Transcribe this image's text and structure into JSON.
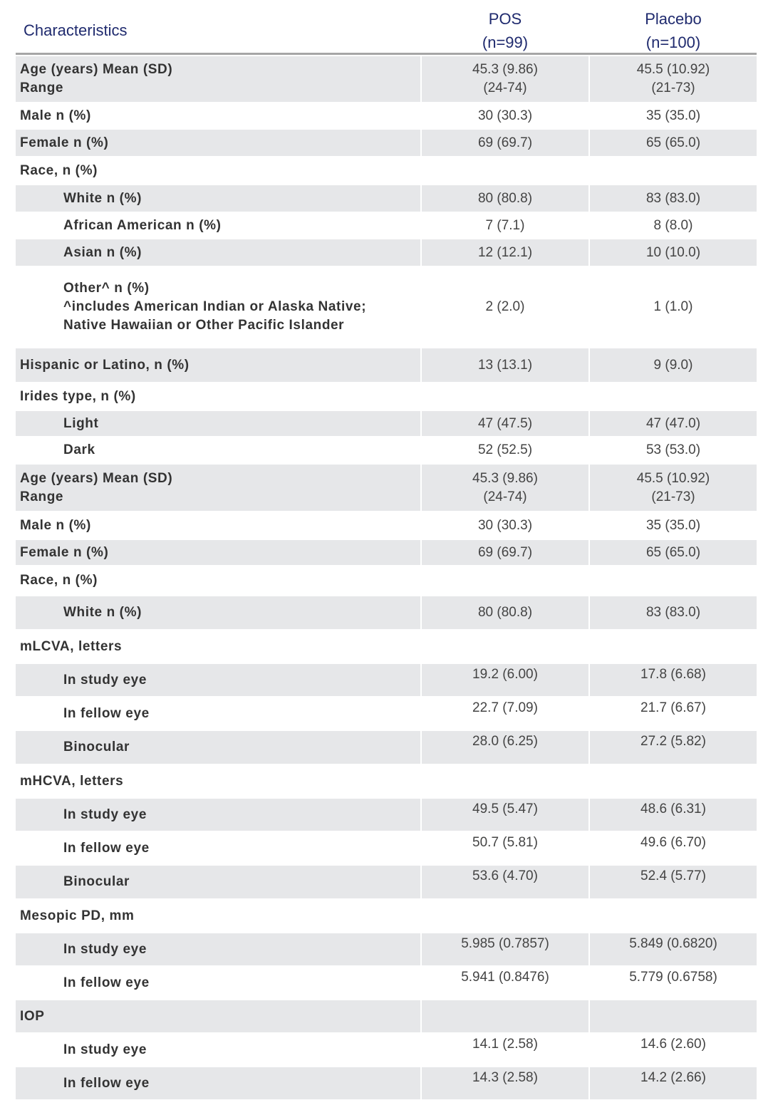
{
  "header": {
    "characteristics": "Characteristics",
    "pos": "POS\n(n=99)",
    "placebo": "Placebo\n(n=100)"
  },
  "colors": {
    "header_text": "#1f2a6e",
    "row_shade": "#e6e7e9",
    "rule": "#a6a6a6"
  },
  "rows": [
    {
      "label": "Age (years) Mean (SD)\nRange",
      "pos": "45.3 (9.86)\n(24-74)",
      "placebo": "45.5 (10.92)\n(21-73)",
      "shaded": true,
      "indent": false
    },
    {
      "label": "Male n (%)",
      "pos": "30 (30.3)",
      "placebo": "35 (35.0)",
      "shaded": false,
      "indent": false
    },
    {
      "label": "Female n (%)",
      "pos": "69 (69.7)",
      "placebo": "65 (65.0)",
      "shaded": true,
      "indent": false
    },
    {
      "label": "Race, n (%)",
      "pos": "",
      "placebo": "",
      "shaded": false,
      "indent": false
    },
    {
      "label": "White n (%)",
      "pos": "80 (80.8)",
      "placebo": "83 (83.0)",
      "shaded": true,
      "indent": true
    },
    {
      "label": "African American n (%)",
      "pos": "7 (7.1)",
      "placebo": "8 (8.0)",
      "shaded": false,
      "indent": true
    },
    {
      "label": "Asian n (%)",
      "pos": "12 (12.1)",
      "placebo": "10 (10.0)",
      "shaded": true,
      "indent": true
    },
    {
      "label": "Other^ n (%)\n^includes American Indian or Alaska Native;\nNative Hawaiian or Other Pacific Islander",
      "pos": "2 (2.0)",
      "placebo": "1 (1.0)",
      "shaded": false,
      "indent": true
    },
    {
      "label": "Hispanic or Latino, n (%)",
      "pos": "13 (13.1)",
      "placebo": "9 (9.0)",
      "shaded": true,
      "indent": false
    },
    {
      "label": "Irides type, n (%)",
      "pos": "",
      "placebo": "",
      "shaded": false,
      "indent": false
    },
    {
      "label": "Light",
      "pos": "47 (47.5)",
      "placebo": "47 (47.0)",
      "shaded": true,
      "indent": true
    },
    {
      "label": "Dark",
      "pos": "52 (52.5)",
      "placebo": "53 (53.0)",
      "shaded": false,
      "indent": true
    },
    {
      "label": "Age (years) Mean (SD)\nRange",
      "pos": "45.3 (9.86)\n(24-74)",
      "placebo": "45.5 (10.92)\n(21-73)",
      "shaded": true,
      "indent": false
    },
    {
      "label": "Male n (%)",
      "pos": "30 (30.3)",
      "placebo": "35 (35.0)",
      "shaded": false,
      "indent": false
    },
    {
      "label": "Female n (%)",
      "pos": "69 (69.7)",
      "placebo": "65 (65.0)",
      "shaded": true,
      "indent": false
    },
    {
      "label": "Race, n (%)",
      "pos": "",
      "placebo": "",
      "shaded": false,
      "indent": false
    },
    {
      "label": "White n (%)",
      "pos": "80 (80.8)",
      "placebo": "83 (83.0)",
      "shaded": true,
      "indent": true
    },
    {
      "label": "mLCVA, letters",
      "pos": "",
      "placebo": "",
      "shaded": false,
      "indent": false
    },
    {
      "label": "In study eye",
      "pos": "19.2 (6.00)",
      "placebo": "17.8 (6.68)",
      "shaded": true,
      "indent": true
    },
    {
      "label": "In fellow eye",
      "pos": "22.7 (7.09)",
      "placebo": "21.7 (6.67)",
      "shaded": false,
      "indent": true
    },
    {
      "label": "Binocular",
      "pos": "28.0 (6.25)",
      "placebo": "27.2 (5.82)",
      "shaded": true,
      "indent": true
    },
    {
      "label": "mHCVA, letters",
      "pos": "",
      "placebo": "",
      "shaded": false,
      "indent": false
    },
    {
      "label": "In study eye",
      "pos": "49.5 (5.47)",
      "placebo": "48.6 (6.31)",
      "shaded": true,
      "indent": true
    },
    {
      "label": "In fellow eye",
      "pos": "50.7 (5.81)",
      "placebo": "49.6 (6.70)",
      "shaded": false,
      "indent": true
    },
    {
      "label": "Binocular",
      "pos": "53.6 (4.70)",
      "placebo": "52.4 (5.77)",
      "shaded": true,
      "indent": true
    },
    {
      "label": "Mesopic PD, mm",
      "pos": "",
      "placebo": "",
      "shaded": false,
      "indent": false
    },
    {
      "label": "In study eye",
      "pos": "5.985 (0.7857)",
      "placebo": "5.849 (0.6820)",
      "shaded": true,
      "indent": true
    },
    {
      "label": "In fellow eye",
      "pos": "5.941 (0.8476)",
      "placebo": "5.779 (0.6758)",
      "shaded": false,
      "indent": true
    },
    {
      "label": "IOP",
      "pos": "",
      "placebo": "",
      "shaded": true,
      "indent": false
    },
    {
      "label": "In study eye",
      "pos": "14.1 (2.58)",
      "placebo": "14.6 (2.60)",
      "shaded": false,
      "indent": true
    },
    {
      "label": "In fellow eye",
      "pos": "14.3 (2.58)",
      "placebo": "14.2 (2.66)",
      "shaded": true,
      "indent": true
    }
  ]
}
